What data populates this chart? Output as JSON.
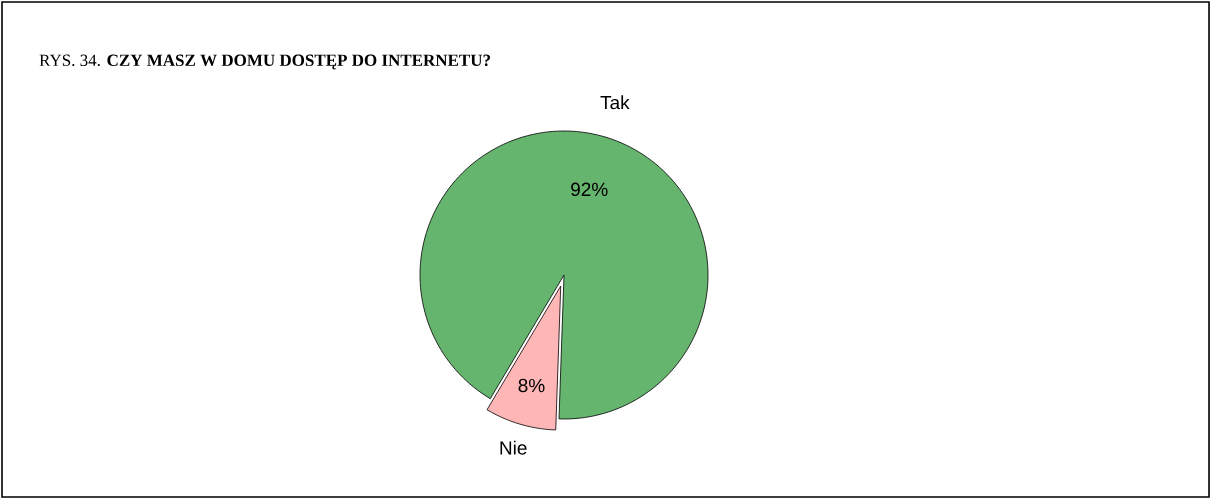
{
  "chart_data": {
    "type": "pie",
    "title": "RYS. 34. **CZY MASZ W DOMU DOSTĘP DO INTERNETU?**",
    "categories": [
      "Tak",
      "Nie"
    ],
    "values": [
      92,
      8
    ],
    "value_labels": [
      "92%",
      "8%"
    ],
    "colors": [
      "#66b56e",
      "#ffb6b6"
    ]
  }
}
